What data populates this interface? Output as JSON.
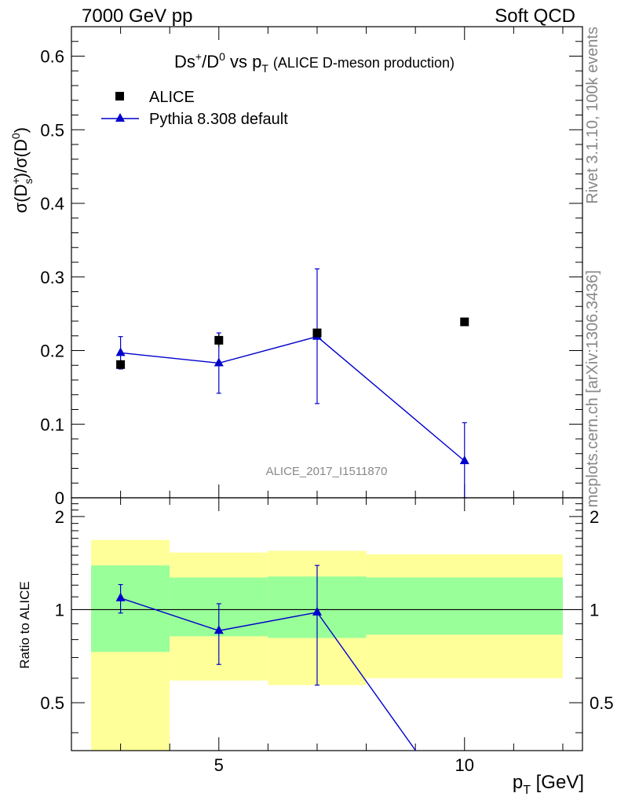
{
  "header": {
    "left": "7000 GeV pp",
    "right": "Soft QCD"
  },
  "side_labels": {
    "rivet": "Rivet 3.1.10,  100k events",
    "mcplots": "mcplots.cern.ch [arXiv:1306.3436]"
  },
  "chart_data": [
    {
      "type": "scatter",
      "panel": "main",
      "title_main": "Ds",
      "title_sup1": "+",
      "title_mid": "/D",
      "title_sup2": "0",
      "title_vs": " vs p",
      "title_sub": "T",
      "title_paren": "(ALICE D-meson production)",
      "ylabel_a": "σ(D",
      "ylabel_sup": "+",
      "ylabel_sub": "s",
      "ylabel_b": ")/σ(D",
      "ylabel_sup2": "0",
      "ylabel_c": ")",
      "ylim": [
        0,
        0.64
      ],
      "yticks": [
        "0",
        "0.1",
        "0.2",
        "0.3",
        "0.4",
        "0.5",
        "0.6"
      ],
      "xlim": [
        2,
        12.4
      ],
      "legend_position": "top-left",
      "watermark": "ALICE_2017_I1511870",
      "series": [
        {
          "name": "ALICE",
          "color": "#000000",
          "marker": "square",
          "x": [
            3,
            5,
            7,
            10
          ],
          "y": [
            0.181,
            0.214,
            0.224,
            0.239
          ],
          "yerr_low": [
            0.005,
            0.009,
            0.0,
            0.0
          ],
          "yerr_high": [
            0.005,
            0.009,
            0.0,
            0.0
          ]
        },
        {
          "name": "Pythia 8.308 default",
          "color": "#0000cc",
          "marker": "triangle",
          "x": [
            3,
            5,
            7,
            10
          ],
          "y": [
            0.197,
            0.183,
            0.219,
            0.05
          ],
          "yerr_low": [
            0.022,
            0.041,
            0.091,
            0.05
          ],
          "yerr_high": [
            0.022,
            0.041,
            0.092,
            0.052
          ]
        }
      ]
    },
    {
      "type": "line",
      "panel": "ratio",
      "ylabel": "Ratio to ALICE",
      "ylim": [
        0.35,
        2.3
      ],
      "log_y": true,
      "yticks": [
        "0.5",
        "1",
        "2"
      ],
      "xlabel": "p",
      "xlabel_sub": "T",
      "xlabel_unit": " [GeV]",
      "xlim": [
        2,
        12.4
      ],
      "xticks": [
        "5",
        "10"
      ],
      "bands": [
        {
          "x_low": 2,
          "x_high": 4,
          "inner": [
            0.73,
            1.39
          ],
          "outer": [
            0.35,
            1.68
          ]
        },
        {
          "x_low": 4,
          "x_high": 6,
          "inner": [
            0.82,
            1.27
          ],
          "outer": [
            0.59,
            1.53
          ]
        },
        {
          "x_low": 6,
          "x_high": 8,
          "inner": [
            0.81,
            1.28
          ],
          "outer": [
            0.57,
            1.55
          ]
        },
        {
          "x_low": 8,
          "x_high": 12,
          "inner": [
            0.83,
            1.27
          ],
          "outer": [
            0.6,
            1.51
          ]
        }
      ],
      "band_colors": {
        "inner": "#99ff99",
        "outer": "#ffff99"
      },
      "series": [
        {
          "name": "Pythia 8.308 default",
          "color": "#0000cc",
          "x": [
            3,
            5,
            7,
            10
          ],
          "y": [
            1.09,
            0.855,
            0.98,
            0.21
          ],
          "yerr_low": [
            0.115,
            0.19,
            0.41,
            0.0
          ],
          "yerr_high": [
            0.115,
            0.19,
            0.41,
            0.0
          ]
        }
      ]
    }
  ]
}
